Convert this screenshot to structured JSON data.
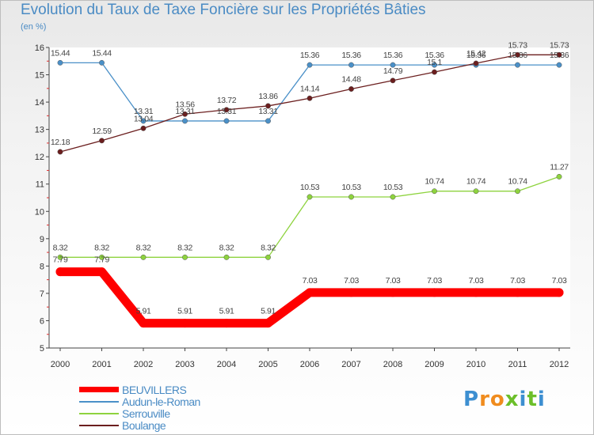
{
  "chart_data": {
    "type": "line",
    "title": "Evolution du Taux de Taxe Foncière sur les Propriétés Bâties",
    "ylabel": "(en %)",
    "xlabel": "",
    "ylim": [
      5,
      16
    ],
    "yticks": [
      5,
      6,
      7,
      8,
      9,
      10,
      11,
      12,
      13,
      14,
      15,
      16
    ],
    "categories": [
      "2000",
      "2001",
      "2002",
      "2003",
      "2004",
      "2005",
      "2006",
      "2007",
      "2008",
      "2009",
      "2010",
      "2011",
      "2012"
    ],
    "series": [
      {
        "name": "BEUVILLERS",
        "color": "#ff0000",
        "values": [
          7.79,
          7.79,
          5.91,
          5.91,
          5.91,
          5.91,
          7.03,
          7.03,
          7.03,
          7.03,
          7.03,
          7.03,
          7.03
        ],
        "labels": [
          "7.79",
          "7.79",
          "5.91",
          "5.91",
          "5.91",
          "5.91",
          "7.03",
          "7.03",
          "7.03",
          "7.03",
          "7.03",
          "7.03",
          "7.03"
        ]
      },
      {
        "name": "Audun-le-Roman",
        "color": "#4a90c8",
        "values": [
          15.44,
          15.44,
          13.31,
          13.31,
          13.31,
          13.31,
          15.36,
          15.36,
          15.36,
          15.36,
          15.36,
          15.36,
          15.36
        ],
        "labels": [
          "15.44",
          "15.44",
          "13.31",
          "13.31",
          "13.31",
          "13.31",
          "15.36",
          "15.36",
          "15.36",
          "15.36",
          "15.36",
          "15.36",
          "15.36"
        ]
      },
      {
        "name": "Serrouville",
        "color": "#8ed33e",
        "values": [
          8.32,
          8.32,
          8.32,
          8.32,
          8.32,
          8.32,
          10.53,
          10.53,
          10.53,
          10.74,
          10.74,
          10.74,
          11.27
        ],
        "labels": [
          "8.32",
          "8.32",
          "8.32",
          "8.32",
          "8.32",
          "8.32",
          "10.53",
          "10.53",
          "10.53",
          "10.74",
          "10.74",
          "10.74",
          "11.27"
        ]
      },
      {
        "name": "Boulange",
        "color": "#6b1e1e",
        "values": [
          12.18,
          12.59,
          13.04,
          13.56,
          13.72,
          13.86,
          14.14,
          14.48,
          14.79,
          15.1,
          15.42,
          15.73,
          15.73
        ],
        "labels": [
          "12.18",
          "12.59",
          "13.04",
          "13.56",
          "13.72",
          "13.86",
          "14.14",
          "14.48",
          "14.79",
          "15.1",
          "15.42",
          "15.73",
          "15.73"
        ]
      }
    ],
    "legend_position": "bottom-left"
  },
  "branding": {
    "logo_text": "Proxiti",
    "logo_colors": [
      "#3d8fd1",
      "#f08c1e",
      "#f08c1e",
      "#6cbf2a",
      "#3d8fd1",
      "#6cbf2a",
      "#3d8fd1"
    ]
  }
}
